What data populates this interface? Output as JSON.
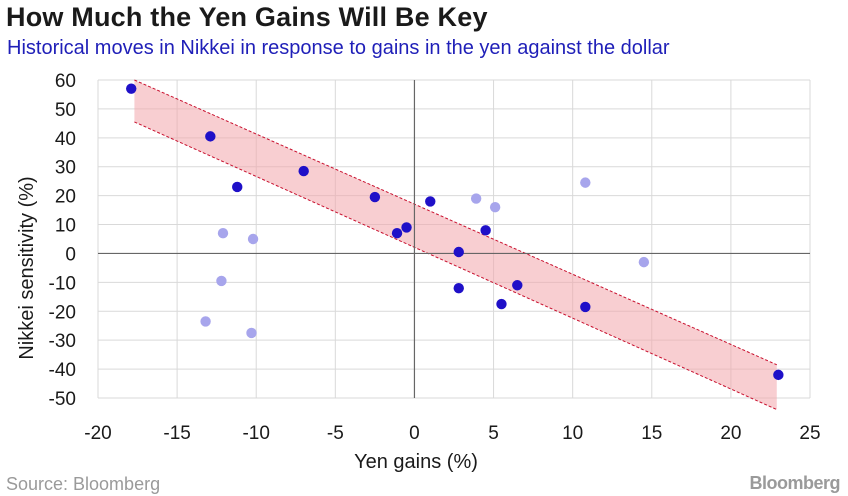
{
  "header": {
    "title": "How Much the Yen Gains Will Be Key",
    "subtitle": "Historical moves in Nikkei in response to gains in the yen against the dollar"
  },
  "footer": {
    "source": "Source: Bloomberg",
    "brand": "Bloomberg"
  },
  "colors": {
    "point_dark": "#1f10c8",
    "point_light": "#a7a5ec",
    "band_fill": "#f2a6ab",
    "band_edge": "#c8102e",
    "grid": "#d9d9d9",
    "zero_line": "#666666"
  },
  "chart_data": {
    "type": "scatter",
    "title": "How Much the Yen Gains Will Be Key",
    "xlabel": "Yen gains (%)",
    "ylabel": "Nikkei sensitivity (%)",
    "xlim": [
      -20,
      25
    ],
    "ylim": [
      -50,
      60
    ],
    "xticks": [
      -20,
      -15,
      -10,
      -5,
      0,
      5,
      10,
      15,
      20,
      25
    ],
    "yticks": [
      60,
      50,
      40,
      30,
      20,
      10,
      0,
      -10,
      -20,
      -30,
      -40,
      -50
    ],
    "grid": true,
    "band": {
      "upper": [
        [
          -17.7,
          60
        ],
        [
          22.9,
          -38.5
        ]
      ],
      "lower": [
        [
          -17.7,
          45.5
        ],
        [
          22.9,
          -54
        ]
      ]
    },
    "series": [
      {
        "emphasis": "dark",
        "points": [
          {
            "x": -17.9,
            "y": 57
          },
          {
            "x": -12.9,
            "y": 40.5
          },
          {
            "x": -11.2,
            "y": 23
          },
          {
            "x": -7.0,
            "y": 28.5
          },
          {
            "x": -2.5,
            "y": 19.5
          },
          {
            "x": -1.1,
            "y": 7
          },
          {
            "x": -0.5,
            "y": 9
          },
          {
            "x": 1.0,
            "y": 18
          },
          {
            "x": 2.8,
            "y": 0.5
          },
          {
            "x": 2.8,
            "y": -12
          },
          {
            "x": 4.5,
            "y": 8
          },
          {
            "x": 5.5,
            "y": -17.5
          },
          {
            "x": 6.5,
            "y": -11
          },
          {
            "x": 10.8,
            "y": -18.5
          },
          {
            "x": 23.0,
            "y": -42
          }
        ]
      },
      {
        "emphasis": "light",
        "points": [
          {
            "x": -12.1,
            "y": 7
          },
          {
            "x": -10.2,
            "y": 5
          },
          {
            "x": -12.2,
            "y": -9.5
          },
          {
            "x": -13.2,
            "y": -23.5
          },
          {
            "x": -10.3,
            "y": -27.5
          },
          {
            "x": 3.9,
            "y": 19
          },
          {
            "x": 5.1,
            "y": 16
          },
          {
            "x": 10.8,
            "y": 24.5
          },
          {
            "x": 14.5,
            "y": -3
          }
        ]
      }
    ]
  }
}
